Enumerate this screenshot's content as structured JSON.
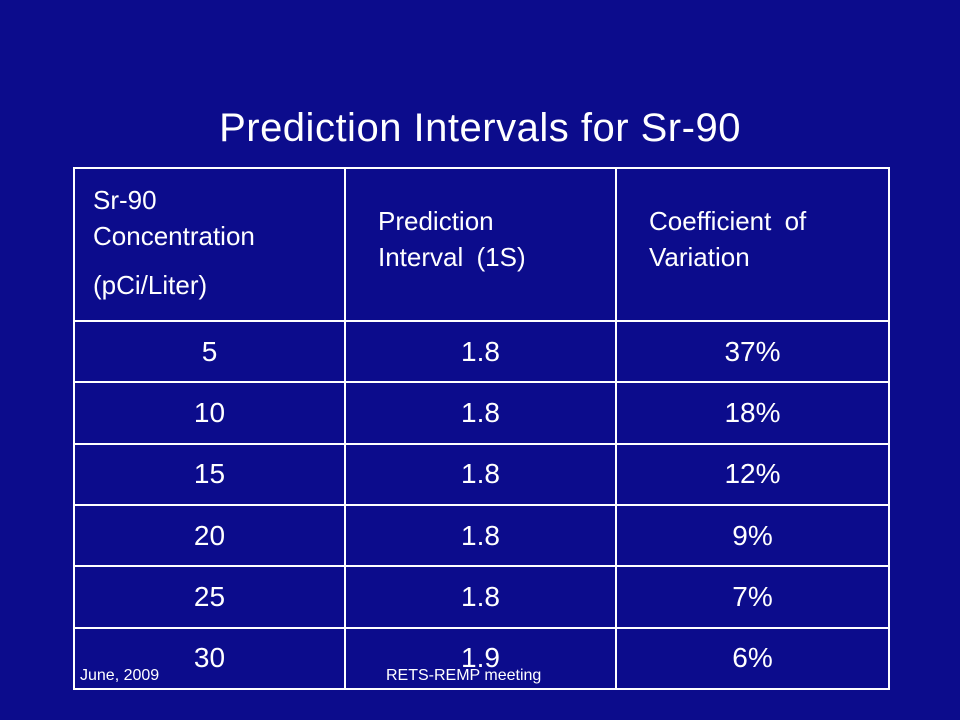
{
  "slide": {
    "title": "Prediction Intervals for Sr-90"
  },
  "table": {
    "headers": {
      "concentration": {
        "line1": "Sr-90",
        "line2": "Concentration",
        "line3": "(pCi/Liter)"
      },
      "prediction": {
        "line1": "Prediction",
        "line2": "Interval (1S)"
      },
      "cv": {
        "line1": "Coefficient of",
        "line2": "Variation"
      }
    },
    "rows": [
      [
        "5",
        "1.8",
        "37%"
      ],
      [
        "10",
        "1.8",
        "18%"
      ],
      [
        "15",
        "1.8",
        "12%"
      ],
      [
        "20",
        "1.8",
        "9%"
      ],
      [
        "25",
        "1.8",
        "7%"
      ],
      [
        "30",
        "1.9",
        "6%"
      ]
    ]
  },
  "footer": {
    "date": "June, 2009",
    "meeting": "RETS-REMP meeting"
  },
  "colors": {
    "background": "#0c0c8c",
    "text": "#ffffff",
    "grid": "#ffffff"
  }
}
